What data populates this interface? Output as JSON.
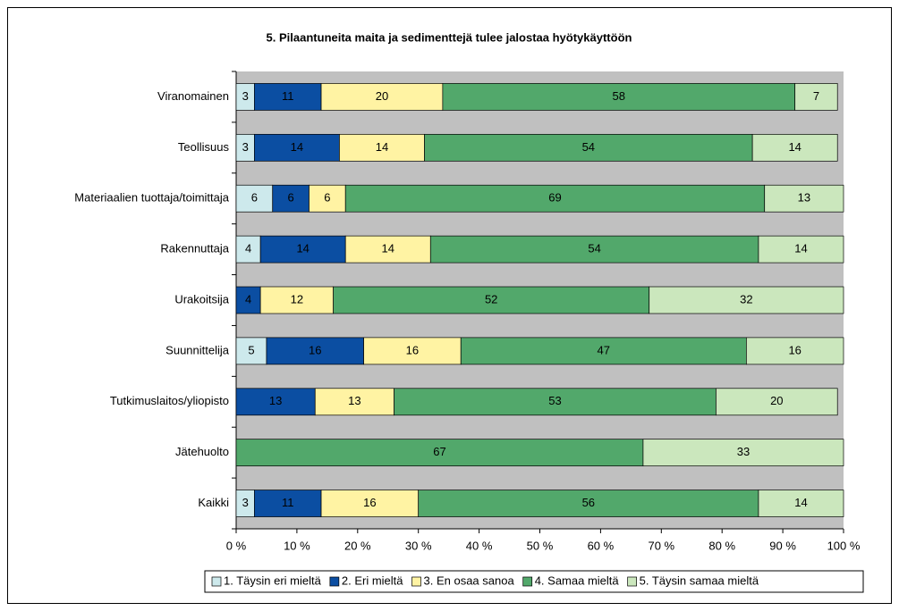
{
  "chart_data": {
    "type": "stacked_bar_horizontal",
    "title": "5. Pilaantuneita maita ja sedimenttejä tulee jalostaa hyötykäyttöön",
    "categories": [
      "Viranomainen",
      "Teollisuus",
      "Materiaalien tuottaja/toimittaja",
      "Rakennuttaja",
      "Urakoitsija",
      "Suunnittelija",
      "Tutkimuslaitos/yliopisto",
      "Jätehuolto",
      "Kaikki"
    ],
    "series": [
      {
        "name": "1. Täysin eri mieltä",
        "color": "#cde9ec",
        "values": [
          3,
          3,
          6,
          4,
          null,
          5,
          null,
          null,
          3
        ]
      },
      {
        "name": "2. Eri mieltä",
        "color": "#0b4ea2",
        "values": [
          11,
          14,
          6,
          14,
          4,
          16,
          13,
          null,
          11
        ]
      },
      {
        "name": "3. En osaa sanoa",
        "color": "#fff3a3",
        "values": [
          20,
          14,
          6,
          14,
          12,
          16,
          13,
          null,
          16
        ]
      },
      {
        "name": "4. Samaa mieltä",
        "color": "#52a86b",
        "values": [
          58,
          54,
          69,
          54,
          52,
          47,
          53,
          67,
          56
        ]
      },
      {
        "name": "5. Täysin samaa mieltä",
        "color": "#cbe7bd",
        "values": [
          7,
          14,
          13,
          14,
          32,
          16,
          20,
          33,
          14
        ]
      }
    ],
    "xlim": [
      0,
      100
    ],
    "xticks": [
      {
        "value": 0,
        "label": "0 %"
      },
      {
        "value": 10,
        "label": "10 %"
      },
      {
        "value": 20,
        "label": "20 %"
      },
      {
        "value": 30,
        "label": "30 %"
      },
      {
        "value": 40,
        "label": "40 %"
      },
      {
        "value": 50,
        "label": "50 %"
      },
      {
        "value": 60,
        "label": "60 %"
      },
      {
        "value": 70,
        "label": "70 %"
      },
      {
        "value": 80,
        "label": "80 %"
      },
      {
        "value": 90,
        "label": "90 %"
      },
      {
        "value": 100,
        "label": "100 %"
      }
    ],
    "legend": "bottom"
  }
}
